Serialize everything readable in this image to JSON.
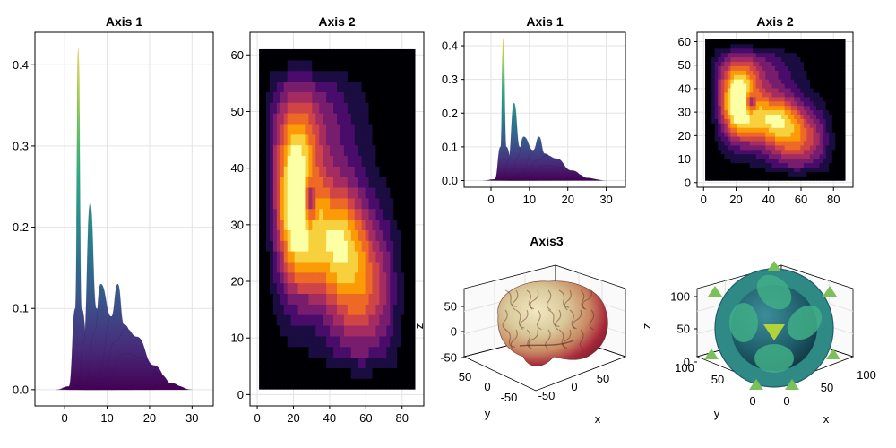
{
  "colors": {
    "viridis": [
      "#440154",
      "#472c7a",
      "#3b518b",
      "#2c718e",
      "#21908d",
      "#27ad81",
      "#5cc863",
      "#aadc32",
      "#fde725"
    ],
    "inferno": [
      "#000004",
      "#1b0c41",
      "#4a0c6b",
      "#781c6d",
      "#a52c60",
      "#cf4446",
      "#ed6925",
      "#fb9b06",
      "#f7d13d",
      "#fcffa4"
    ],
    "brain": [
      "#3b3f2a",
      "#8b9a4a",
      "#d8c99a",
      "#f1e3b5",
      "#c4604a",
      "#a8273a"
    ],
    "cube": [
      "#1f5d6a",
      "#2f8a86",
      "#3fae86",
      "#7cc05a",
      "#b3d33b"
    ]
  },
  "chart_data": [
    {
      "id": "axis1-left",
      "type": "area",
      "title": "Axis 1",
      "xlim": [
        -7,
        35
      ],
      "ylim": [
        -0.02,
        0.44
      ],
      "xticks": [
        "0",
        "10",
        "20",
        "30"
      ],
      "xtick_values": [
        0,
        10,
        20,
        30
      ],
      "yticks": [
        "0.0",
        "0.1",
        "0.2",
        "0.3",
        "0.4"
      ],
      "ytick_values": [
        0,
        0.1,
        0.2,
        0.3,
        0.4
      ],
      "grid": true,
      "series": [
        {
          "values": [
            [
              -2,
              0
            ],
            [
              1,
              0.004
            ],
            [
              2.5,
              0.1
            ],
            [
              3.2,
              0.42
            ],
            [
              4,
              0.1
            ],
            [
              6,
              0.01
            ],
            [
              8,
              0
            ]
          ]
        },
        {
          "values": [
            [
              0,
              0
            ],
            [
              3,
              0.004
            ],
            [
              4.5,
              0.06
            ],
            [
              6,
              0.23
            ],
            [
              7.5,
              0.1
            ],
            [
              10,
              0.02
            ],
            [
              12,
              0
            ]
          ]
        },
        {
          "values": [
            [
              1,
              0
            ],
            [
              5,
              0.01
            ],
            [
              7,
              0.07
            ],
            [
              8.5,
              0.13
            ],
            [
              11,
              0.09
            ],
            [
              14,
              0.03
            ],
            [
              16,
              0
            ]
          ]
        },
        {
          "values": [
            [
              3,
              0
            ],
            [
              8,
              0.02
            ],
            [
              11,
              0.09
            ],
            [
              12.5,
              0.13
            ],
            [
              14,
              0.08
            ],
            [
              18,
              0.03
            ],
            [
              21,
              0
            ]
          ]
        },
        {
          "values": [
            [
              4,
              0
            ],
            [
              9,
              0.02
            ],
            [
              12,
              0.06
            ],
            [
              14.5,
              0.075
            ],
            [
              17,
              0.065
            ],
            [
              21,
              0.03
            ],
            [
              25,
              0.008
            ],
            [
              29,
              0
            ]
          ]
        },
        {
          "values": [
            [
              5,
              0
            ],
            [
              10,
              0.015
            ],
            [
              14,
              0.045
            ],
            [
              18,
              0.04
            ],
            [
              22,
              0.02
            ],
            [
              26,
              0.005
            ],
            [
              30,
              0
            ]
          ]
        }
      ]
    },
    {
      "id": "axis2-left",
      "type": "heatmap",
      "title": "Axis 2",
      "xlim": [
        -4,
        92
      ],
      "ylim": [
        -2,
        64
      ],
      "xticks": [
        "0",
        "20",
        "40",
        "60",
        "80"
      ],
      "xtick_values": [
        0,
        20,
        40,
        60,
        80
      ],
      "yticks": [
        "0",
        "10",
        "20",
        "30",
        "40",
        "50",
        "60"
      ],
      "ytick_values": [
        0,
        10,
        20,
        30,
        40,
        50,
        60
      ],
      "extent": {
        "x": [
          1,
          87
        ],
        "y": [
          1,
          61
        ]
      },
      "grid": true,
      "peak": [
        23,
        35
      ]
    },
    {
      "id": "axis1-right",
      "type": "area",
      "title": "Axis 1",
      "xlim": [
        -7,
        35
      ],
      "ylim": [
        -0.02,
        0.44
      ],
      "xticks": [
        "0",
        "10",
        "20",
        "30"
      ],
      "xtick_values": [
        0,
        10,
        20,
        30
      ],
      "yticks": [
        "0.0",
        "0.1",
        "0.2",
        "0.3",
        "0.4"
      ],
      "ytick_values": [
        0,
        0.1,
        0.2,
        0.3,
        0.4
      ],
      "grid": true,
      "series": [
        {
          "values": [
            [
              -2,
              0
            ],
            [
              1,
              0.004
            ],
            [
              2.5,
              0.1
            ],
            [
              3.2,
              0.42
            ],
            [
              4,
              0.1
            ],
            [
              6,
              0.01
            ],
            [
              8,
              0
            ]
          ]
        },
        {
          "values": [
            [
              0,
              0
            ],
            [
              3,
              0.004
            ],
            [
              4.5,
              0.06
            ],
            [
              6,
              0.23
            ],
            [
              7.5,
              0.1
            ],
            [
              10,
              0.02
            ],
            [
              12,
              0
            ]
          ]
        },
        {
          "values": [
            [
              1,
              0
            ],
            [
              5,
              0.01
            ],
            [
              7,
              0.07
            ],
            [
              8.5,
              0.13
            ],
            [
              11,
              0.09
            ],
            [
              14,
              0.03
            ],
            [
              16,
              0
            ]
          ]
        },
        {
          "values": [
            [
              3,
              0
            ],
            [
              8,
              0.02
            ],
            [
              11,
              0.09
            ],
            [
              12.5,
              0.13
            ],
            [
              14,
              0.08
            ],
            [
              18,
              0.03
            ],
            [
              21,
              0
            ]
          ]
        },
        {
          "values": [
            [
              4,
              0
            ],
            [
              9,
              0.02
            ],
            [
              12,
              0.06
            ],
            [
              14.5,
              0.075
            ],
            [
              17,
              0.065
            ],
            [
              21,
              0.03
            ],
            [
              25,
              0.008
            ],
            [
              29,
              0
            ]
          ]
        },
        {
          "values": [
            [
              5,
              0
            ],
            [
              10,
              0.015
            ],
            [
              14,
              0.045
            ],
            [
              18,
              0.04
            ],
            [
              22,
              0.02
            ],
            [
              26,
              0.005
            ],
            [
              30,
              0
            ]
          ]
        }
      ]
    },
    {
      "id": "axis2-right",
      "type": "heatmap",
      "title": "Axis 2",
      "xlim": [
        -4,
        92
      ],
      "ylim": [
        -2,
        64
      ],
      "xticks": [
        "0",
        "20",
        "40",
        "60",
        "80"
      ],
      "xtick_values": [
        0,
        20,
        40,
        60,
        80
      ],
      "yticks": [
        "0",
        "10",
        "20",
        "30",
        "40",
        "50",
        "60"
      ],
      "ytick_values": [
        0,
        10,
        20,
        30,
        40,
        50,
        60
      ],
      "extent": {
        "x": [
          1,
          87
        ],
        "y": [
          1,
          61
        ]
      },
      "grid": true,
      "peak": [
        23,
        35
      ]
    },
    {
      "id": "axis3-brain",
      "type": "mesh3d",
      "title": "Axis3",
      "xticks": [
        "-50",
        "0",
        "50"
      ],
      "yticks": [
        "50",
        "0",
        "-50"
      ],
      "zticks": [
        "50",
        "0",
        "-50"
      ],
      "xlabel": "x",
      "ylabel": "y",
      "zlabel": "z"
    },
    {
      "id": "axis3-cube",
      "type": "contour3d",
      "title": "",
      "xticks": [
        "0",
        "50",
        "100"
      ],
      "yticks": [
        "100",
        "50",
        "0"
      ],
      "zticks": [
        "100",
        "50",
        "0"
      ],
      "xlabel": "x",
      "ylabel": "y",
      "zlabel": "z"
    }
  ]
}
